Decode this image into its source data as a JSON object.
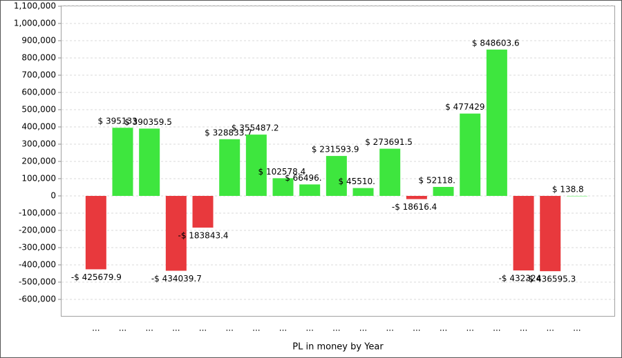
{
  "chart_data": {
    "type": "bar",
    "x_label": "PL in money by Year",
    "categories": [
      "...",
      "...",
      "...",
      "...",
      "...",
      "...",
      "...",
      "...",
      "...",
      "...",
      "...",
      "...",
      "...",
      "...",
      "...",
      "...",
      "...",
      "...",
      "..."
    ],
    "values": [
      -425679.9,
      395133,
      390359.5,
      -434039.7,
      -183843.4,
      328833.7,
      355487.2,
      102578.4,
      66496,
      231593.9,
      45510,
      273691.5,
      -18616.4,
      52118,
      477429,
      848603.6,
      -432324,
      -436595.3,
      138.8
    ],
    "value_labels": [
      "-$ 425679.9",
      "$ 395133",
      "$ 390359.5",
      "-$ 434039.7",
      "-$ 183843.4",
      "$ 328833.7",
      "$ 355487.2",
      "$ 102578.4",
      "$ 66496.",
      "$ 231593.9",
      "$ 45510.",
      "$ 273691.5",
      "-$ 18616.4",
      "$ 52118.",
      "$ 477429",
      "$ 848603.6",
      "-$ 432324",
      "-$ 436595.3",
      "$ 138.8"
    ],
    "positive_color": "#3ee63e",
    "negative_color": "#e8393d",
    "ylim": [
      -700000,
      1100000
    ],
    "yticks": [
      {
        "value": -600000,
        "label": "-600,000"
      },
      {
        "value": -500000,
        "label": "-500,000"
      },
      {
        "value": -400000,
        "label": "-400,000"
      },
      {
        "value": -300000,
        "label": "-300,000"
      },
      {
        "value": -200000,
        "label": "-200,000"
      },
      {
        "value": -100000,
        "label": "-100,000"
      },
      0,
      {
        "value": 100000,
        "label": "100,000"
      },
      {
        "value": 200000,
        "label": "200,000"
      },
      {
        "value": 300000,
        "label": "300,000"
      },
      {
        "value": 400000,
        "label": "400,000"
      },
      {
        "value": 500000,
        "label": "500,000"
      },
      {
        "value": 600000,
        "label": "600,000"
      },
      {
        "value": 700000,
        "label": "700,000"
      },
      {
        "value": 800000,
        "label": "800,000"
      },
      {
        "value": 900000,
        "label": "900,000"
      },
      {
        "value": 1000000,
        "label": "1,000,000"
      },
      {
        "value": 1100000,
        "label": "1,100,000"
      }
    ],
    "grid": true
  }
}
